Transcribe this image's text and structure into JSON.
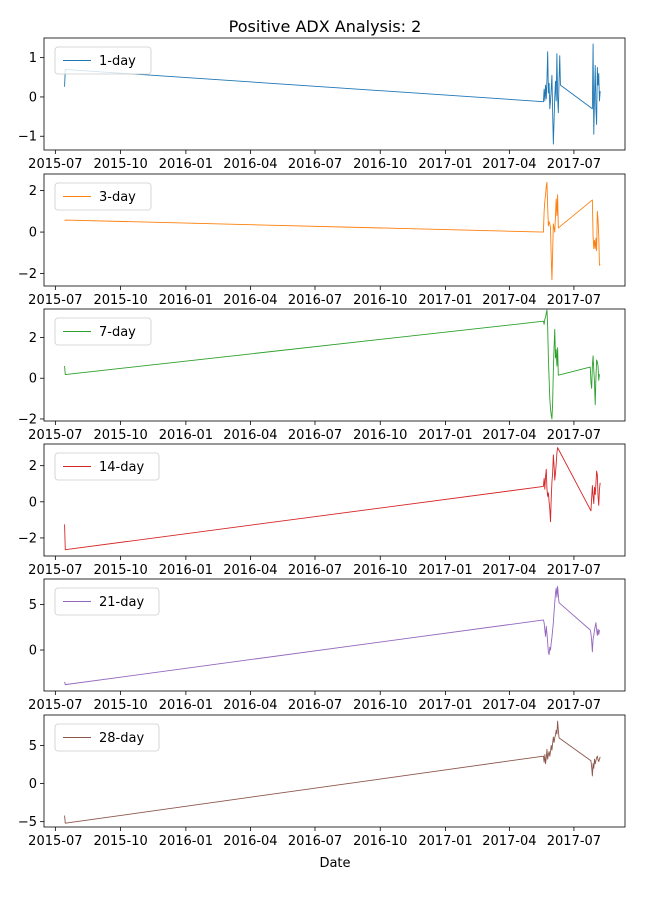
{
  "chart_data": {
    "type": "line",
    "title": "Positive ADX Analysis: 2",
    "xlabel": "Date",
    "x_ticks": [
      "2015-07",
      "2015-10",
      "2016-01",
      "2016-04",
      "2016-07",
      "2016-10",
      "2017-01",
      "2017-04",
      "2017-07"
    ],
    "x_range": [
      "2015-06-15",
      "2017-09-11"
    ],
    "legend_position": "upper left",
    "grid": false,
    "subplots": [
      {
        "series_name": "1-day",
        "color": "#1f77b4",
        "ylim": [
          -1.35,
          1.5
        ],
        "yticks": [
          -1,
          0,
          1
        ],
        "points": [
          [
            "2015-07-14",
            0.26
          ],
          [
            "2015-07-15",
            0.7
          ],
          [
            "2017-05-19",
            -0.12
          ],
          [
            "2017-05-20",
            0.2
          ],
          [
            "2017-05-21",
            -0.1
          ],
          [
            "2017-05-22",
            0.3
          ],
          [
            "2017-05-23",
            -0.05
          ],
          [
            "2017-05-24",
            0.45
          ],
          [
            "2017-05-25",
            1.15
          ],
          [
            "2017-05-26",
            0.1
          ],
          [
            "2017-05-27",
            0.35
          ],
          [
            "2017-05-28",
            -0.3
          ],
          [
            "2017-05-29",
            -0.1
          ],
          [
            "2017-05-30",
            0.2
          ],
          [
            "2017-05-31",
            0.55
          ],
          [
            "2017-06-01",
            -0.4
          ],
          [
            "2017-06-02",
            -1.2
          ],
          [
            "2017-06-03",
            -0.6
          ],
          [
            "2017-06-04",
            0.0
          ],
          [
            "2017-06-05",
            0.4
          ],
          [
            "2017-06-06",
            -0.1
          ],
          [
            "2017-06-07",
            1.1
          ],
          [
            "2017-06-08",
            0.0
          ],
          [
            "2017-06-09",
            -0.4
          ],
          [
            "2017-06-10",
            0.4
          ],
          [
            "2017-06-11",
            1.05
          ],
          [
            "2017-06-12",
            0.3
          ],
          [
            "2017-07-27",
            -0.3
          ],
          [
            "2017-07-28",
            1.35
          ],
          [
            "2017-07-29",
            -0.95
          ],
          [
            "2017-07-30",
            0.0
          ],
          [
            "2017-07-31",
            0.8
          ],
          [
            "2017-08-01",
            -0.3
          ],
          [
            "2017-08-02",
            -0.7
          ],
          [
            "2017-08-03",
            0.75
          ],
          [
            "2017-08-04",
            0.3
          ],
          [
            "2017-08-05",
            0.6
          ],
          [
            "2017-08-06",
            -0.1
          ],
          [
            "2017-08-07",
            0.15
          ]
        ]
      },
      {
        "series_name": "3-day",
        "color": "#ff7f0e",
        "ylim": [
          -2.6,
          2.8
        ],
        "yticks": [
          -2,
          0,
          2
        ],
        "points": [
          [
            "2015-07-14",
            0.55
          ],
          [
            "2015-07-15",
            0.58
          ],
          [
            "2017-05-19",
            0.0
          ],
          [
            "2017-05-20",
            1.0
          ],
          [
            "2017-05-21",
            1.5
          ],
          [
            "2017-05-22",
            1.8
          ],
          [
            "2017-05-23",
            2.2
          ],
          [
            "2017-05-24",
            2.4
          ],
          [
            "2017-05-25",
            1.2
          ],
          [
            "2017-05-26",
            0.3
          ],
          [
            "2017-05-27",
            0.5
          ],
          [
            "2017-05-28",
            0.4
          ],
          [
            "2017-05-29",
            0.2
          ],
          [
            "2017-05-30",
            -1.2
          ],
          [
            "2017-05-31",
            -2.3
          ],
          [
            "2017-06-01",
            -1.0
          ],
          [
            "2017-06-02",
            0.4
          ],
          [
            "2017-06-03",
            0.2
          ],
          [
            "2017-06-04",
            0.0
          ],
          [
            "2017-06-05",
            0.8
          ],
          [
            "2017-06-06",
            1.6
          ],
          [
            "2017-06-07",
            0.8
          ],
          [
            "2017-06-08",
            1.8
          ],
          [
            "2017-06-09",
            0.2
          ],
          [
            "2017-07-27",
            1.55
          ],
          [
            "2017-07-28",
            -0.2
          ],
          [
            "2017-07-29",
            -0.8
          ],
          [
            "2017-07-30",
            -0.4
          ],
          [
            "2017-07-31",
            -0.8
          ],
          [
            "2017-08-01",
            -0.3
          ],
          [
            "2017-08-02",
            -0.9
          ],
          [
            "2017-08-03",
            1.0
          ],
          [
            "2017-08-04",
            0.6
          ],
          [
            "2017-08-05",
            -0.2
          ],
          [
            "2017-08-06",
            -1.6
          ],
          [
            "2017-08-07",
            -1.55
          ]
        ]
      },
      {
        "series_name": "7-day",
        "color": "#2ca02c",
        "ylim": [
          -2.1,
          3.4
        ],
        "yticks": [
          -2,
          0,
          2
        ],
        "points": [
          [
            "2015-07-14",
            0.6
          ],
          [
            "2015-07-15",
            0.18
          ],
          [
            "2017-05-19",
            2.8
          ],
          [
            "2017-05-20",
            2.65
          ],
          [
            "2017-05-21",
            2.9
          ],
          [
            "2017-05-22",
            3.0
          ],
          [
            "2017-05-23",
            3.2
          ],
          [
            "2017-05-24",
            3.35
          ],
          [
            "2017-05-25",
            2.5
          ],
          [
            "2017-05-26",
            1.0
          ],
          [
            "2017-05-27",
            0.0
          ],
          [
            "2017-05-28",
            -1.0
          ],
          [
            "2017-05-29",
            -1.5
          ],
          [
            "2017-05-30",
            -1.8
          ],
          [
            "2017-05-31",
            -2.0
          ],
          [
            "2017-06-01",
            -1.2
          ],
          [
            "2017-06-02",
            0.4
          ],
          [
            "2017-06-03",
            1.5
          ],
          [
            "2017-06-04",
            2.4
          ],
          [
            "2017-06-05",
            1.0
          ],
          [
            "2017-06-06",
            1.4
          ],
          [
            "2017-06-07",
            0.6
          ],
          [
            "2017-06-08",
            1.5
          ],
          [
            "2017-06-09",
            0.15
          ],
          [
            "2017-07-24",
            0.55
          ],
          [
            "2017-07-25",
            -0.2
          ],
          [
            "2017-07-26",
            -0.5
          ],
          [
            "2017-07-27",
            0.6
          ],
          [
            "2017-07-28",
            1.1
          ],
          [
            "2017-07-29",
            0.4
          ],
          [
            "2017-07-30",
            -0.2
          ],
          [
            "2017-07-31",
            -1.3
          ],
          [
            "2017-08-01",
            0.0
          ],
          [
            "2017-08-02",
            0.9
          ],
          [
            "2017-08-03",
            0.8
          ],
          [
            "2017-08-04",
            0.6
          ],
          [
            "2017-08-05",
            -0.1
          ],
          [
            "2017-08-06",
            0.2
          ]
        ]
      },
      {
        "series_name": "14-day",
        "color": "#d62728",
        "ylim": [
          -3.0,
          3.2
        ],
        "yticks": [
          -2,
          0,
          2
        ],
        "points": [
          [
            "2015-07-14",
            -1.25
          ],
          [
            "2015-07-15",
            -2.65
          ],
          [
            "2017-05-19",
            0.85
          ],
          [
            "2017-05-20",
            1.3
          ],
          [
            "2017-05-21",
            0.7
          ],
          [
            "2017-05-22",
            1.4
          ],
          [
            "2017-05-23",
            1.8
          ],
          [
            "2017-05-24",
            0.7
          ],
          [
            "2017-05-25",
            0.3
          ],
          [
            "2017-05-26",
            0.5
          ],
          [
            "2017-05-27",
            0.0
          ],
          [
            "2017-05-28",
            -0.4
          ],
          [
            "2017-05-29",
            -1.1
          ],
          [
            "2017-05-30",
            0.2
          ],
          [
            "2017-05-31",
            1.1
          ],
          [
            "2017-06-01",
            1.6
          ],
          [
            "2017-06-02",
            2.6
          ],
          [
            "2017-06-03",
            2.0
          ],
          [
            "2017-06-04",
            1.2
          ],
          [
            "2017-06-05",
            1.6
          ],
          [
            "2017-06-06",
            2.1
          ],
          [
            "2017-06-07",
            2.7
          ],
          [
            "2017-06-08",
            3.0
          ],
          [
            "2017-07-25",
            -0.5
          ],
          [
            "2017-07-26",
            0.2
          ],
          [
            "2017-07-27",
            0.9
          ],
          [
            "2017-07-28",
            0.3
          ],
          [
            "2017-07-29",
            -0.1
          ],
          [
            "2017-07-30",
            0.8
          ],
          [
            "2017-07-31",
            0.4
          ],
          [
            "2017-08-01",
            1.0
          ],
          [
            "2017-08-02",
            1.7
          ],
          [
            "2017-08-03",
            1.5
          ],
          [
            "2017-08-04",
            0.3
          ],
          [
            "2017-08-05",
            -0.2
          ],
          [
            "2017-08-06",
            0.7
          ],
          [
            "2017-08-07",
            1.05
          ]
        ]
      },
      {
        "series_name": "21-day",
        "color": "#9467bd",
        "ylim": [
          -4.5,
          7.8
        ],
        "yticks": [
          0,
          5
        ],
        "points": [
          [
            "2015-07-14",
            -3.5
          ],
          [
            "2015-07-15",
            -3.8
          ],
          [
            "2017-05-19",
            3.3
          ],
          [
            "2017-05-20",
            3.0
          ],
          [
            "2017-05-21",
            2.2
          ],
          [
            "2017-05-22",
            1.5
          ],
          [
            "2017-05-23",
            2.6
          ],
          [
            "2017-05-24",
            1.8
          ],
          [
            "2017-05-25",
            0.8
          ],
          [
            "2017-05-26",
            -0.2
          ],
          [
            "2017-05-27",
            -0.5
          ],
          [
            "2017-05-28",
            0.3
          ],
          [
            "2017-05-29",
            0.0
          ],
          [
            "2017-05-30",
            0.8
          ],
          [
            "2017-05-31",
            1.4
          ],
          [
            "2017-06-01",
            2.2
          ],
          [
            "2017-06-02",
            3.0
          ],
          [
            "2017-06-03",
            4.2
          ],
          [
            "2017-06-04",
            5.2
          ],
          [
            "2017-06-05",
            6.2
          ],
          [
            "2017-06-06",
            6.8
          ],
          [
            "2017-06-07",
            5.8
          ],
          [
            "2017-06-08",
            7.0
          ],
          [
            "2017-06-09",
            6.0
          ],
          [
            "2017-06-10",
            5.2
          ],
          [
            "2017-07-24",
            2.2
          ],
          [
            "2017-07-25",
            1.8
          ],
          [
            "2017-07-26",
            1.0
          ],
          [
            "2017-07-27",
            -0.2
          ],
          [
            "2017-07-28",
            1.2
          ],
          [
            "2017-07-29",
            1.6
          ],
          [
            "2017-07-30",
            2.2
          ],
          [
            "2017-07-31",
            2.6
          ],
          [
            "2017-08-01",
            3.0
          ],
          [
            "2017-08-02",
            2.2
          ],
          [
            "2017-08-03",
            1.6
          ],
          [
            "2017-08-04",
            2.3
          ],
          [
            "2017-08-05",
            1.7
          ],
          [
            "2017-08-06",
            2.2
          ]
        ]
      },
      {
        "series_name": "28-day",
        "color": "#8c564b",
        "ylim": [
          -5.7,
          9.0
        ],
        "yticks": [
          -5,
          0,
          5
        ],
        "points": [
          [
            "2015-07-14",
            -4.2
          ],
          [
            "2015-07-15",
            -5.2
          ],
          [
            "2017-05-19",
            3.6
          ],
          [
            "2017-05-20",
            2.8
          ],
          [
            "2017-05-21",
            3.8
          ],
          [
            "2017-05-22",
            2.6
          ],
          [
            "2017-05-23",
            3.4
          ],
          [
            "2017-05-24",
            4.5
          ],
          [
            "2017-05-25",
            3.2
          ],
          [
            "2017-05-26",
            3.8
          ],
          [
            "2017-05-27",
            4.2
          ],
          [
            "2017-05-28",
            3.6
          ],
          [
            "2017-05-29",
            4.2
          ],
          [
            "2017-05-30",
            5.0
          ],
          [
            "2017-05-31",
            4.4
          ],
          [
            "2017-06-01",
            5.3
          ],
          [
            "2017-06-02",
            6.1
          ],
          [
            "2017-06-03",
            5.4
          ],
          [
            "2017-06-04",
            6.0
          ],
          [
            "2017-06-05",
            6.4
          ],
          [
            "2017-06-06",
            7.0
          ],
          [
            "2017-06-07",
            6.5
          ],
          [
            "2017-06-08",
            8.2
          ],
          [
            "2017-06-09",
            7.0
          ],
          [
            "2017-06-10",
            6.0
          ],
          [
            "2017-07-25",
            3.0
          ],
          [
            "2017-07-26",
            2.2
          ],
          [
            "2017-07-27",
            1.0
          ],
          [
            "2017-07-28",
            2.6
          ],
          [
            "2017-07-29",
            2.0
          ],
          [
            "2017-07-30",
            3.2
          ],
          [
            "2017-07-31",
            2.6
          ],
          [
            "2017-08-01",
            3.0
          ],
          [
            "2017-08-02",
            3.4
          ],
          [
            "2017-08-03",
            3.6
          ],
          [
            "2017-08-04",
            3.1
          ],
          [
            "2017-08-05",
            2.9
          ],
          [
            "2017-08-06",
            3.2
          ],
          [
            "2017-08-07",
            3.5
          ]
        ]
      }
    ]
  }
}
